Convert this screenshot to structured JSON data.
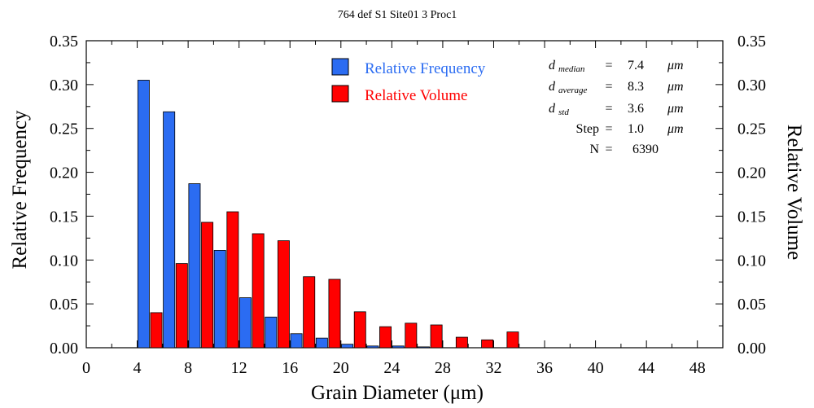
{
  "chart_data": {
    "type": "bar",
    "title": "764 def S1 Site01 3 Proc1",
    "xlabel": "Grain Diameter (μm)",
    "ylabel_left": "Relative Frequency",
    "ylabel_right": "Relative Volume",
    "xlim": [
      0,
      50
    ],
    "ylim": [
      0,
      0.35
    ],
    "x_ticks": [
      0,
      4,
      8,
      12,
      16,
      20,
      24,
      28,
      32,
      36,
      40,
      44,
      48
    ],
    "x_minor_step": 2,
    "y_ticks": [
      0.0,
      0.05,
      0.1,
      0.15,
      0.2,
      0.25,
      0.3,
      0.35
    ],
    "bin_width": 2,
    "bin_starts": [
      4,
      6,
      8,
      10,
      12,
      14,
      16,
      18,
      20,
      22,
      24,
      26,
      28,
      30,
      32
    ],
    "series": [
      {
        "name": "Relative Frequency",
        "color": "#2b6cf2",
        "values": [
          0.305,
          0.269,
          0.187,
          0.111,
          0.057,
          0.035,
          0.016,
          0.011,
          0.004,
          0.002,
          0.002,
          0.001,
          0.0,
          0.0,
          0.0
        ]
      },
      {
        "name": "Relative Volume",
        "color": "#ff0000",
        "values": [
          0.04,
          0.096,
          0.143,
          0.155,
          0.13,
          0.122,
          0.081,
          0.078,
          0.041,
          0.024,
          0.028,
          0.026,
          0.012,
          0.009,
          0.018
        ]
      }
    ],
    "legend_position": "top-center",
    "stats": [
      {
        "symbol": "d",
        "subscript": "median",
        "eq": "=",
        "value": "7.4",
        "unit": "μm"
      },
      {
        "symbol": "d",
        "subscript": "average",
        "eq": "=",
        "value": "8.3",
        "unit": "μm"
      },
      {
        "symbol": "d",
        "subscript": "std",
        "eq": "=",
        "value": "3.6",
        "unit": "μm"
      },
      {
        "symbol": "Step",
        "subscript": "",
        "eq": "=",
        "value": "1.0",
        "unit": "μm"
      },
      {
        "symbol": "N",
        "subscript": "",
        "eq": "=",
        "value": "6390",
        "unit": ""
      }
    ]
  }
}
